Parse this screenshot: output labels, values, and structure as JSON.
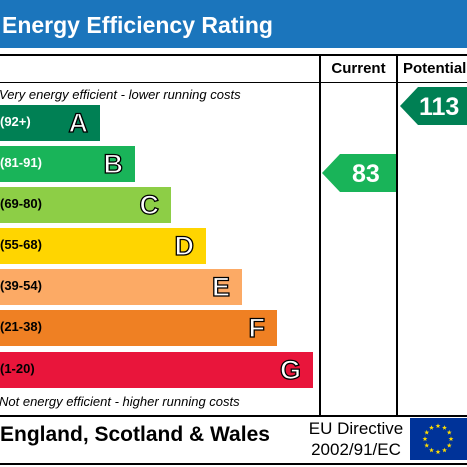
{
  "header": {
    "title": "Energy Efficiency Rating"
  },
  "columns": {
    "current": "Current",
    "potential": "Potential"
  },
  "notes": {
    "top": "Very energy efficient - lower running costs",
    "bottom": "Not energy efficient - higher running costs"
  },
  "bands": [
    {
      "range": "(92+)",
      "letter": "A",
      "color": "#008054"
    },
    {
      "range": "(81-91)",
      "letter": "B",
      "color": "#19b459"
    },
    {
      "range": "(69-80)",
      "letter": "C",
      "color": "#8dce46"
    },
    {
      "range": "(55-68)",
      "letter": "D",
      "color": "#ffd500"
    },
    {
      "range": "(39-54)",
      "letter": "E",
      "color": "#fcaa65"
    },
    {
      "range": "(21-38)",
      "letter": "F",
      "color": "#ef8023"
    },
    {
      "range": "(1-20)",
      "letter": "G",
      "color": "#e9153b"
    }
  ],
  "ratings": {
    "current": {
      "value": "83",
      "color": "#19b459"
    },
    "potential": {
      "value": "113",
      "color": "#008054"
    }
  },
  "footer": {
    "country": "England, Scotland & Wales",
    "directive_line1": "EU Directive",
    "directive_line2": "2002/91/EC",
    "flag_color": "#003399",
    "star_color": "#ffdd00"
  }
}
